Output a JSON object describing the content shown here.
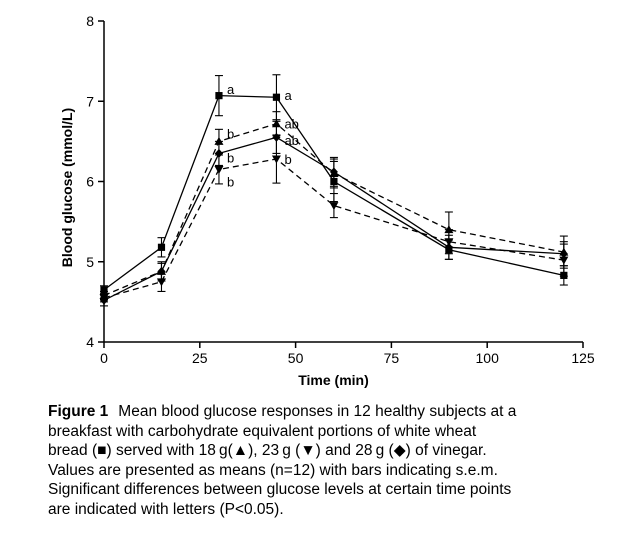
{
  "chart_data": {
    "type": "line",
    "xlabel": "Time (min)",
    "ylabel": "Blood glucose (mmol/L)",
    "xlim": [
      0,
      125
    ],
    "ylim": [
      4,
      8
    ],
    "xticks": [
      0,
      25,
      50,
      75,
      100,
      125
    ],
    "yticks": [
      4,
      5,
      6,
      7,
      8
    ],
    "x": [
      0,
      15,
      30,
      45,
      60,
      90,
      120
    ],
    "series": [
      {
        "name": "white wheat bread (■)",
        "marker": "square",
        "dash": "solid",
        "values": [
          4.65,
          5.18,
          7.07,
          7.05,
          6.0,
          5.15,
          4.83
        ],
        "errors": [
          0.05,
          0.12,
          0.25,
          0.28,
          0.25,
          0.12,
          0.12
        ]
      },
      {
        "name": "18 g vinegar (▲)",
        "marker": "triangle-up",
        "dash": "dashed",
        "values": [
          4.58,
          4.88,
          6.5,
          6.72,
          6.1,
          5.4,
          5.12
        ],
        "errors": [
          0.05,
          0.1,
          0.15,
          0.15,
          0.18,
          0.22,
          0.2
        ]
      },
      {
        "name": "23 g vinegar (▼)",
        "marker": "triangle-down",
        "dash": "dashed",
        "values": [
          4.55,
          4.75,
          6.15,
          6.28,
          5.7,
          5.25,
          5.02
        ],
        "errors": [
          0.05,
          0.12,
          0.18,
          0.3,
          0.15,
          0.15,
          0.2
        ]
      },
      {
        "name": "28 g vinegar (◆)",
        "marker": "diamond",
        "dash": "solid",
        "values": [
          4.52,
          4.88,
          6.35,
          6.55,
          6.12,
          5.18,
          5.1
        ],
        "errors": [
          0.07,
          0.12,
          0.15,
          0.2,
          0.18,
          0.15,
          0.15
        ]
      }
    ],
    "annotations": [
      {
        "x": 30,
        "y": 7.15,
        "text": "a"
      },
      {
        "x": 30,
        "y": 6.6,
        "text": "b"
      },
      {
        "x": 30,
        "y": 6.3,
        "text": "b"
      },
      {
        "x": 30,
        "y": 6.0,
        "text": "b"
      },
      {
        "x": 45,
        "y": 7.08,
        "text": "a"
      },
      {
        "x": 45,
        "y": 6.72,
        "text": "ab"
      },
      {
        "x": 45,
        "y": 6.52,
        "text": "ab"
      },
      {
        "x": 45,
        "y": 6.28,
        "text": "b"
      }
    ]
  },
  "caption": {
    "label": "Figure 1",
    "lines": [
      "Mean blood glucose responses in 12 healthy subjects at a",
      "breakfast with carbohydrate equivalent portions of white wheat",
      "bread (■) served with 18 g(▲), 23 g (▼) and 28 g (◆) of vinegar.",
      "Values are presented as means (n=12) with bars indicating s.e.m.",
      "Significant differences between glucose levels at certain time points",
      "are indicated with letters (P<0.05)."
    ]
  }
}
